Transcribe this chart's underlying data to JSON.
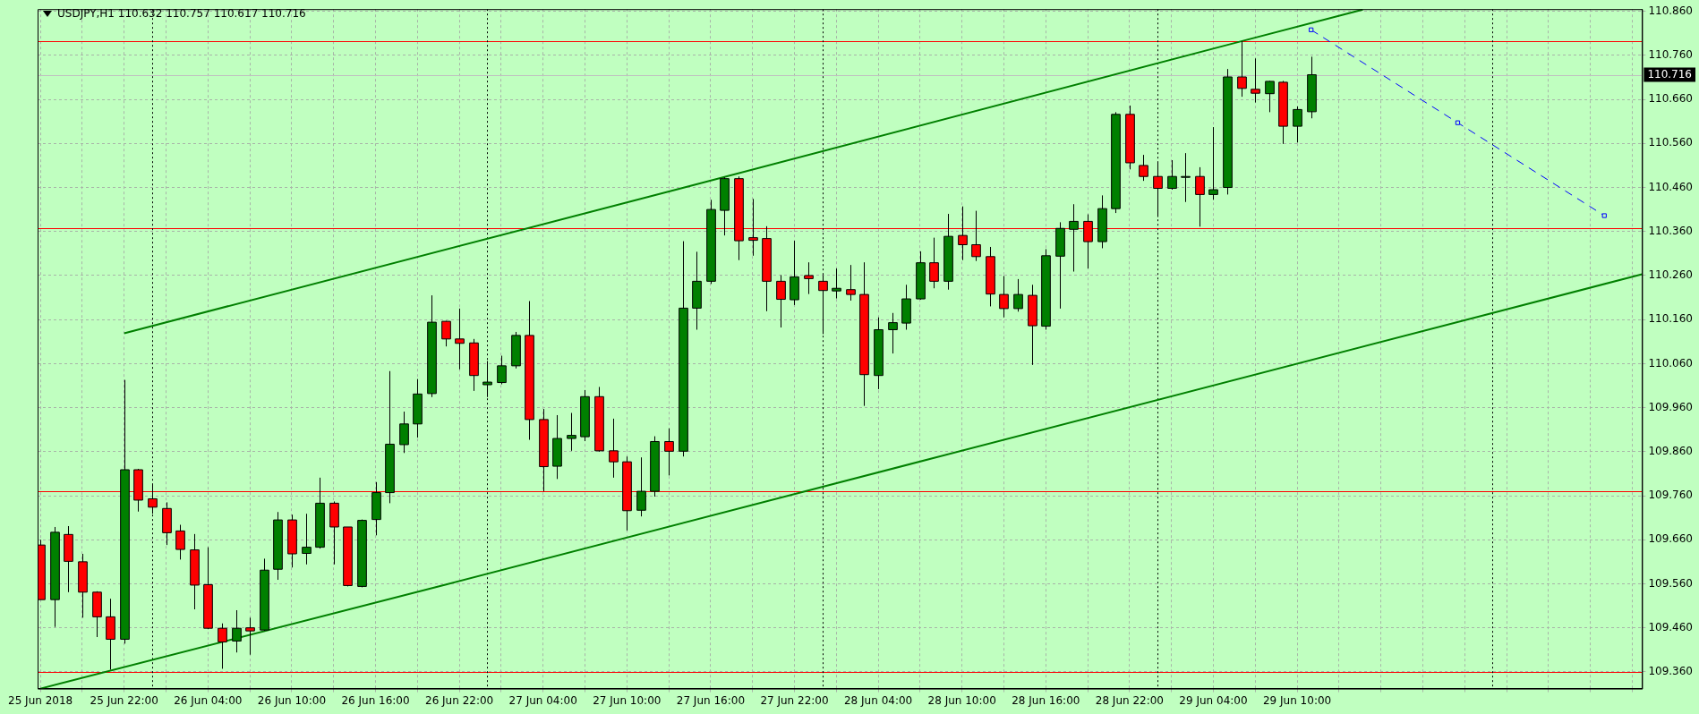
{
  "chart_data": {
    "type": "candlestick",
    "title": "USDJPY,H1 110.632 110.757 110.617 110.716",
    "x": [
      "2018-06-25T16:00",
      "2018-06-25T17:00",
      "2018-06-25T18:00",
      "2018-06-25T19:00",
      "2018-06-25T20:00",
      "2018-06-25T21:00",
      "2018-06-25T22:00",
      "2018-06-25T23:00",
      "2018-06-26T00:00",
      "2018-06-26T01:00",
      "2018-06-26T02:00",
      "2018-06-26T03:00",
      "2018-06-26T04:00",
      "2018-06-26T05:00",
      "2018-06-26T06:00",
      "2018-06-26T07:00",
      "2018-06-26T08:00",
      "2018-06-26T09:00",
      "2018-06-26T10:00",
      "2018-06-26T11:00",
      "2018-06-26T12:00",
      "2018-06-26T13:00",
      "2018-06-26T14:00",
      "2018-06-26T15:00",
      "2018-06-26T16:00",
      "2018-06-26T17:00",
      "2018-06-26T18:00",
      "2018-06-26T19:00",
      "2018-06-26T20:00",
      "2018-06-26T21:00",
      "2018-06-26T22:00",
      "2018-06-26T23:00",
      "2018-06-27T00:00",
      "2018-06-27T01:00",
      "2018-06-27T02:00",
      "2018-06-27T03:00",
      "2018-06-27T04:00",
      "2018-06-27T05:00",
      "2018-06-27T06:00",
      "2018-06-27T07:00",
      "2018-06-27T08:00",
      "2018-06-27T09:00",
      "2018-06-27T10:00",
      "2018-06-27T11:00",
      "2018-06-27T12:00",
      "2018-06-27T13:00",
      "2018-06-27T14:00",
      "2018-06-27T15:00",
      "2018-06-27T16:00",
      "2018-06-27T17:00",
      "2018-06-27T18:00",
      "2018-06-27T19:00",
      "2018-06-27T20:00",
      "2018-06-27T21:00",
      "2018-06-27T22:00",
      "2018-06-27T23:00",
      "2018-06-28T00:00",
      "2018-06-28T01:00",
      "2018-06-28T02:00",
      "2018-06-28T03:00",
      "2018-06-28T04:00",
      "2018-06-28T05:00",
      "2018-06-28T06:00",
      "2018-06-28T07:00",
      "2018-06-28T08:00",
      "2018-06-28T09:00",
      "2018-06-28T10:00",
      "2018-06-28T11:00",
      "2018-06-28T12:00",
      "2018-06-28T13:00",
      "2018-06-28T14:00",
      "2018-06-28T15:00",
      "2018-06-28T16:00",
      "2018-06-28T17:00",
      "2018-06-28T18:00",
      "2018-06-28T19:00",
      "2018-06-28T20:00",
      "2018-06-28T21:00",
      "2018-06-28T22:00",
      "2018-06-28T23:00",
      "2018-06-29T00:00",
      "2018-06-29T01:00",
      "2018-06-29T02:00",
      "2018-06-29T03:00",
      "2018-06-29T04:00",
      "2018-06-29T05:00",
      "2018-06-29T06:00",
      "2018-06-29T07:00",
      "2018-06-29T08:00",
      "2018-06-29T09:00",
      "2018-06-29T10:00",
      "2018-06-29T11:00"
    ],
    "ohlc": [
      [
        109.648,
        109.66,
        109.524,
        109.524
      ],
      [
        109.524,
        109.689,
        109.462,
        109.677
      ],
      [
        109.672,
        109.691,
        109.541,
        109.611
      ],
      [
        109.61,
        109.628,
        109.483,
        109.541
      ],
      [
        109.541,
        109.543,
        109.439,
        109.485
      ],
      [
        109.485,
        109.526,
        109.365,
        109.434
      ],
      [
        109.434,
        110.023,
        109.424,
        109.819
      ],
      [
        109.819,
        109.821,
        109.724,
        109.75
      ],
      [
        109.753,
        109.785,
        109.719,
        109.734
      ],
      [
        109.731,
        109.745,
        109.648,
        109.676
      ],
      [
        109.68,
        109.694,
        109.615,
        109.638
      ],
      [
        109.637,
        109.673,
        109.502,
        109.557
      ],
      [
        109.558,
        109.643,
        109.457,
        109.459
      ],
      [
        109.459,
        109.47,
        109.367,
        109.428
      ],
      [
        109.43,
        109.5,
        109.404,
        109.459
      ],
      [
        109.46,
        109.483,
        109.399,
        109.453
      ],
      [
        109.455,
        109.617,
        109.453,
        109.591
      ],
      [
        109.593,
        109.723,
        109.569,
        109.705
      ],
      [
        109.705,
        109.717,
        109.597,
        109.628
      ],
      [
        109.629,
        109.719,
        109.604,
        109.643
      ],
      [
        109.643,
        109.801,
        109.64,
        109.743
      ],
      [
        109.743,
        109.747,
        109.604,
        109.689
      ],
      [
        109.689,
        109.689,
        109.554,
        109.556
      ],
      [
        109.554,
        109.706,
        109.552,
        109.704
      ],
      [
        109.706,
        109.791,
        109.67,
        109.767
      ],
      [
        109.767,
        110.043,
        109.743,
        109.877
      ],
      [
        109.876,
        109.951,
        109.857,
        109.923
      ],
      [
        109.923,
        110.025,
        109.892,
        109.991
      ],
      [
        109.992,
        110.215,
        109.984,
        110.154
      ],
      [
        110.156,
        110.157,
        110.099,
        110.116
      ],
      [
        110.116,
        110.185,
        110.047,
        110.106
      ],
      [
        110.107,
        110.116,
        109.998,
        110.033
      ],
      [
        110.012,
        110.066,
        109.984,
        110.018
      ],
      [
        110.017,
        110.078,
        110.013,
        110.055
      ],
      [
        110.055,
        110.132,
        110.049,
        110.124
      ],
      [
        110.124,
        110.202,
        109.887,
        109.933
      ],
      [
        109.933,
        109.957,
        109.77,
        109.826
      ],
      [
        109.827,
        109.943,
        109.798,
        109.89
      ],
      [
        109.89,
        109.948,
        109.862,
        109.897
      ],
      [
        109.894,
        110.0,
        109.884,
        109.985
      ],
      [
        109.985,
        110.007,
        109.86,
        109.862
      ],
      [
        109.862,
        109.935,
        109.801,
        109.837
      ],
      [
        109.837,
        109.849,
        109.681,
        109.726
      ],
      [
        109.727,
        109.847,
        109.713,
        109.77
      ],
      [
        109.77,
        109.895,
        109.758,
        109.883
      ],
      [
        109.883,
        109.913,
        109.806,
        109.861
      ],
      [
        109.861,
        110.338,
        109.849,
        110.186
      ],
      [
        110.186,
        110.314,
        110.137,
        110.247
      ],
      [
        110.247,
        110.432,
        110.241,
        110.41
      ],
      [
        110.408,
        110.483,
        110.351,
        110.48
      ],
      [
        110.48,
        110.485,
        110.295,
        110.339
      ],
      [
        110.346,
        110.434,
        110.305,
        110.34
      ],
      [
        110.344,
        110.372,
        110.179,
        110.247
      ],
      [
        110.247,
        110.261,
        110.142,
        110.206
      ],
      [
        110.205,
        110.339,
        110.193,
        110.257
      ],
      [
        110.26,
        110.29,
        110.218,
        110.253
      ],
      [
        110.247,
        110.261,
        110.127,
        110.226
      ],
      [
        110.225,
        110.276,
        110.208,
        110.231
      ],
      [
        110.228,
        110.284,
        110.203,
        110.217
      ],
      [
        110.217,
        110.29,
        109.964,
        110.035
      ],
      [
        110.033,
        110.165,
        110.002,
        110.137
      ],
      [
        110.137,
        110.175,
        110.083,
        110.153
      ],
      [
        110.152,
        110.239,
        110.137,
        110.207
      ],
      [
        110.207,
        110.315,
        110.205,
        110.289
      ],
      [
        110.289,
        110.346,
        110.231,
        110.247
      ],
      [
        110.247,
        110.4,
        110.228,
        110.349
      ],
      [
        110.351,
        110.417,
        110.295,
        110.33
      ],
      [
        110.33,
        110.407,
        110.293,
        110.303
      ],
      [
        110.303,
        110.325,
        110.19,
        110.218
      ],
      [
        110.217,
        110.259,
        110.165,
        110.185
      ],
      [
        110.185,
        110.252,
        110.178,
        110.217
      ],
      [
        110.215,
        110.239,
        110.057,
        110.146
      ],
      [
        110.145,
        110.32,
        110.137,
        110.305
      ],
      [
        110.304,
        110.381,
        110.185,
        110.367
      ],
      [
        110.365,
        110.422,
        110.269,
        110.383
      ],
      [
        110.383,
        110.399,
        110.276,
        110.337
      ],
      [
        110.337,
        110.442,
        110.322,
        110.412
      ],
      [
        110.412,
        110.631,
        110.402,
        110.626
      ],
      [
        110.626,
        110.646,
        110.501,
        110.516
      ],
      [
        110.51,
        110.534,
        110.475,
        110.485
      ],
      [
        110.485,
        110.516,
        110.393,
        110.458
      ],
      [
        110.458,
        110.522,
        110.455,
        110.485
      ],
      [
        110.485,
        110.538,
        110.427,
        110.485
      ],
      [
        110.485,
        110.506,
        110.371,
        110.444
      ],
      [
        110.444,
        110.597,
        110.432,
        110.455
      ],
      [
        110.46,
        110.729,
        110.444,
        110.711
      ],
      [
        110.711,
        110.792,
        110.666,
        110.685
      ],
      [
        110.683,
        110.753,
        110.653,
        110.674
      ],
      [
        110.673,
        110.702,
        110.631,
        110.701
      ],
      [
        110.699,
        110.702,
        110.559,
        110.599
      ],
      [
        110.599,
        110.644,
        110.562,
        110.637
      ],
      [
        110.632,
        110.757,
        110.617,
        110.716
      ]
    ],
    "colors": [
      "#ff0000",
      "#008000",
      "#ff0000",
      "#ff0000",
      "#ff0000",
      "#ff0000",
      "#008000",
      "#ff0000",
      "#ff0000",
      "#ff0000",
      "#ff0000",
      "#ff0000",
      "#ff0000",
      "#ff0000",
      "#008000",
      "#ff0000",
      "#008000",
      "#008000",
      "#ff0000",
      "#008000",
      "#008000",
      "#ff0000",
      "#ff0000",
      "#008000",
      "#008000",
      "#008000",
      "#008000",
      "#008000",
      "#008000",
      "#ff0000",
      "#ff0000",
      "#ff0000",
      "#008000",
      "#008000",
      "#008000",
      "#ff0000",
      "#ff0000",
      "#008000",
      "#008000",
      "#008000",
      "#ff0000",
      "#ff0000",
      "#ff0000",
      "#008000",
      "#008000",
      "#ff0000",
      "#008000",
      "#008000",
      "#008000",
      "#008000",
      "#ff0000",
      "#ff0000",
      "#ff0000",
      "#ff0000",
      "#008000",
      "#ff0000",
      "#ff0000",
      "#008000",
      "#ff0000",
      "#ff0000",
      "#008000",
      "#008000",
      "#008000",
      "#008000",
      "#ff0000",
      "#008000",
      "#ff0000",
      "#ff0000",
      "#ff0000",
      "#ff0000",
      "#008000",
      "#ff0000",
      "#008000",
      "#008000",
      "#008000",
      "#ff0000",
      "#008000",
      "#008000",
      "#ff0000",
      "#ff0000",
      "#ff0000",
      "#008000",
      "#008000",
      "#ff0000",
      "#008000",
      "#008000",
      "#ff0000",
      "#ff0000",
      "#008000",
      "#ff0000",
      "#008000",
      "#008000"
    ],
    "series": [
      {
        "type": "line",
        "color": "#008000",
        "x": [
          "2018-06-25T22:00",
          "2018-06-27T14:00",
          "2018-06-29T06:00",
          "2018-06-29T14:42"
        ],
        "values": [
          110.129,
          110.459,
          110.792,
          110.864
        ],
        "marker": "none"
      },
      {
        "type": "line",
        "color": "#008000",
        "x": [
          "2018-06-25T16:00",
          "2018-06-26T21:00",
          "2018-06-30T10:42"
        ],
        "values": [
          109.322,
          109.558,
          110.263
        ],
        "marker": "none"
      },
      {
        "type": "line",
        "color": "#0000ff",
        "x": [
          "2018-06-29T11:00",
          "2018-06-29T21:30",
          "2018-06-30T08:00"
        ],
        "values": [
          110.818,
          110.607,
          110.396
        ],
        "marker": "square",
        "line_style": "dashed"
      }
    ],
    "ref_lines": [
      {
        "axis": "y",
        "value": 110.792,
        "color": "#ff0000"
      },
      {
        "axis": "y",
        "value": 110.367,
        "color": "#ff0000"
      },
      {
        "axis": "y",
        "value": 109.77,
        "color": "#ff0000"
      },
      {
        "axis": "y",
        "value": 109.36,
        "color": "#ff0000"
      },
      {
        "axis": "y",
        "value": 110.716,
        "label": "110.716",
        "color": "#c0c0c0"
      },
      {
        "axis": "x",
        "value": "2018-06-26T00:00",
        "color": "#000000",
        "line_style": "dotted"
      },
      {
        "axis": "x",
        "value": "2018-06-27T00:00",
        "color": "#000000",
        "line_style": "dotted"
      },
      {
        "axis": "x",
        "value": "2018-06-28T00:00",
        "color": "#000000",
        "line_style": "dotted"
      },
      {
        "axis": "x",
        "value": "2018-06-29T00:00",
        "color": "#000000",
        "line_style": "dotted"
      },
      {
        "axis": "x",
        "value": "2018-06-30T00:00",
        "color": "#000000",
        "line_style": "dotted"
      }
    ],
    "xlim": [
      "2018-06-25T15:48",
      "2018-06-30T10:42"
    ],
    "xticks": [
      {
        "value": "2018-06-25T16:00",
        "label": "25 Jun 2018"
      },
      {
        "value": "2018-06-25T19:00",
        "label": null
      },
      {
        "value": "2018-06-25T22:00",
        "label": "25 Jun 22:00"
      },
      {
        "value": "2018-06-26T01:00",
        "label": null
      },
      {
        "value": "2018-06-26T04:00",
        "label": "26 Jun 04:00"
      },
      {
        "value": "2018-06-26T07:00",
        "label": null
      },
      {
        "value": "2018-06-26T10:00",
        "label": "26 Jun 10:00"
      },
      {
        "value": "2018-06-26T13:00",
        "label": null
      },
      {
        "value": "2018-06-26T16:00",
        "label": "26 Jun 16:00"
      },
      {
        "value": "2018-06-26T19:00",
        "label": null
      },
      {
        "value": "2018-06-26T22:00",
        "label": "26 Jun 22:00"
      },
      {
        "value": "2018-06-27T01:00",
        "label": null
      },
      {
        "value": "2018-06-27T04:00",
        "label": "27 Jun 04:00"
      },
      {
        "value": "2018-06-27T07:00",
        "label": null
      },
      {
        "value": "2018-06-27T10:00",
        "label": "27 Jun 10:00"
      },
      {
        "value": "2018-06-27T13:00",
        "label": null
      },
      {
        "value": "2018-06-27T16:00",
        "label": "27 Jun 16:00"
      },
      {
        "value": "2018-06-27T19:00",
        "label": null
      },
      {
        "value": "2018-06-27T22:00",
        "label": "27 Jun 22:00"
      },
      {
        "value": "2018-06-28T01:00",
        "label": null
      },
      {
        "value": "2018-06-28T04:00",
        "label": "28 Jun 04:00"
      },
      {
        "value": "2018-06-28T07:00",
        "label": null
      },
      {
        "value": "2018-06-28T10:00",
        "label": "28 Jun 10:00"
      },
      {
        "value": "2018-06-28T13:00",
        "label": null
      },
      {
        "value": "2018-06-28T16:00",
        "label": "28 Jun 16:00"
      },
      {
        "value": "2018-06-28T19:00",
        "label": null
      },
      {
        "value": "2018-06-28T22:00",
        "label": "28 Jun 22:00"
      },
      {
        "value": "2018-06-29T01:00",
        "label": null
      },
      {
        "value": "2018-06-29T04:00",
        "label": "29 Jun 04:00"
      },
      {
        "value": "2018-06-29T07:00",
        "label": null
      },
      {
        "value": "2018-06-29T10:00",
        "label": "29 Jun 10:00"
      },
      {
        "value": "2018-06-29T13:00",
        "label": null
      },
      {
        "value": "2018-06-29T16:00",
        "label": null
      },
      {
        "value": "2018-06-29T19:00",
        "label": null
      },
      {
        "value": "2018-06-29T22:00",
        "label": null
      },
      {
        "value": "2018-06-30T01:00",
        "label": null
      },
      {
        "value": "2018-06-30T04:00",
        "label": null
      },
      {
        "value": "2018-06-30T07:00",
        "label": null
      },
      {
        "value": "2018-06-30T10:00",
        "label": null
      }
    ],
    "ylim": [
      109.322,
      110.865
    ],
    "yticks": [
      {
        "value": 109.36,
        "label": "109.360"
      },
      {
        "value": 109.46,
        "label": "109.460"
      },
      {
        "value": 109.56,
        "label": "109.560"
      },
      {
        "value": 109.66,
        "label": "109.660"
      },
      {
        "value": 109.76,
        "label": "109.760"
      },
      {
        "value": 109.86,
        "label": "109.860"
      },
      {
        "value": 109.96,
        "label": "109.960"
      },
      {
        "value": 110.06,
        "label": "110.060"
      },
      {
        "value": 110.16,
        "label": "110.160"
      },
      {
        "value": 110.26,
        "label": "110.260"
      },
      {
        "value": 110.36,
        "label": "110.360"
      },
      {
        "value": 110.46,
        "label": "110.460"
      },
      {
        "value": 110.56,
        "label": "110.560"
      },
      {
        "value": 110.66,
        "label": "110.660"
      },
      {
        "value": 110.76,
        "label": "110.760"
      },
      {
        "value": 110.86,
        "label": "110.860"
      }
    ],
    "grid": true
  }
}
